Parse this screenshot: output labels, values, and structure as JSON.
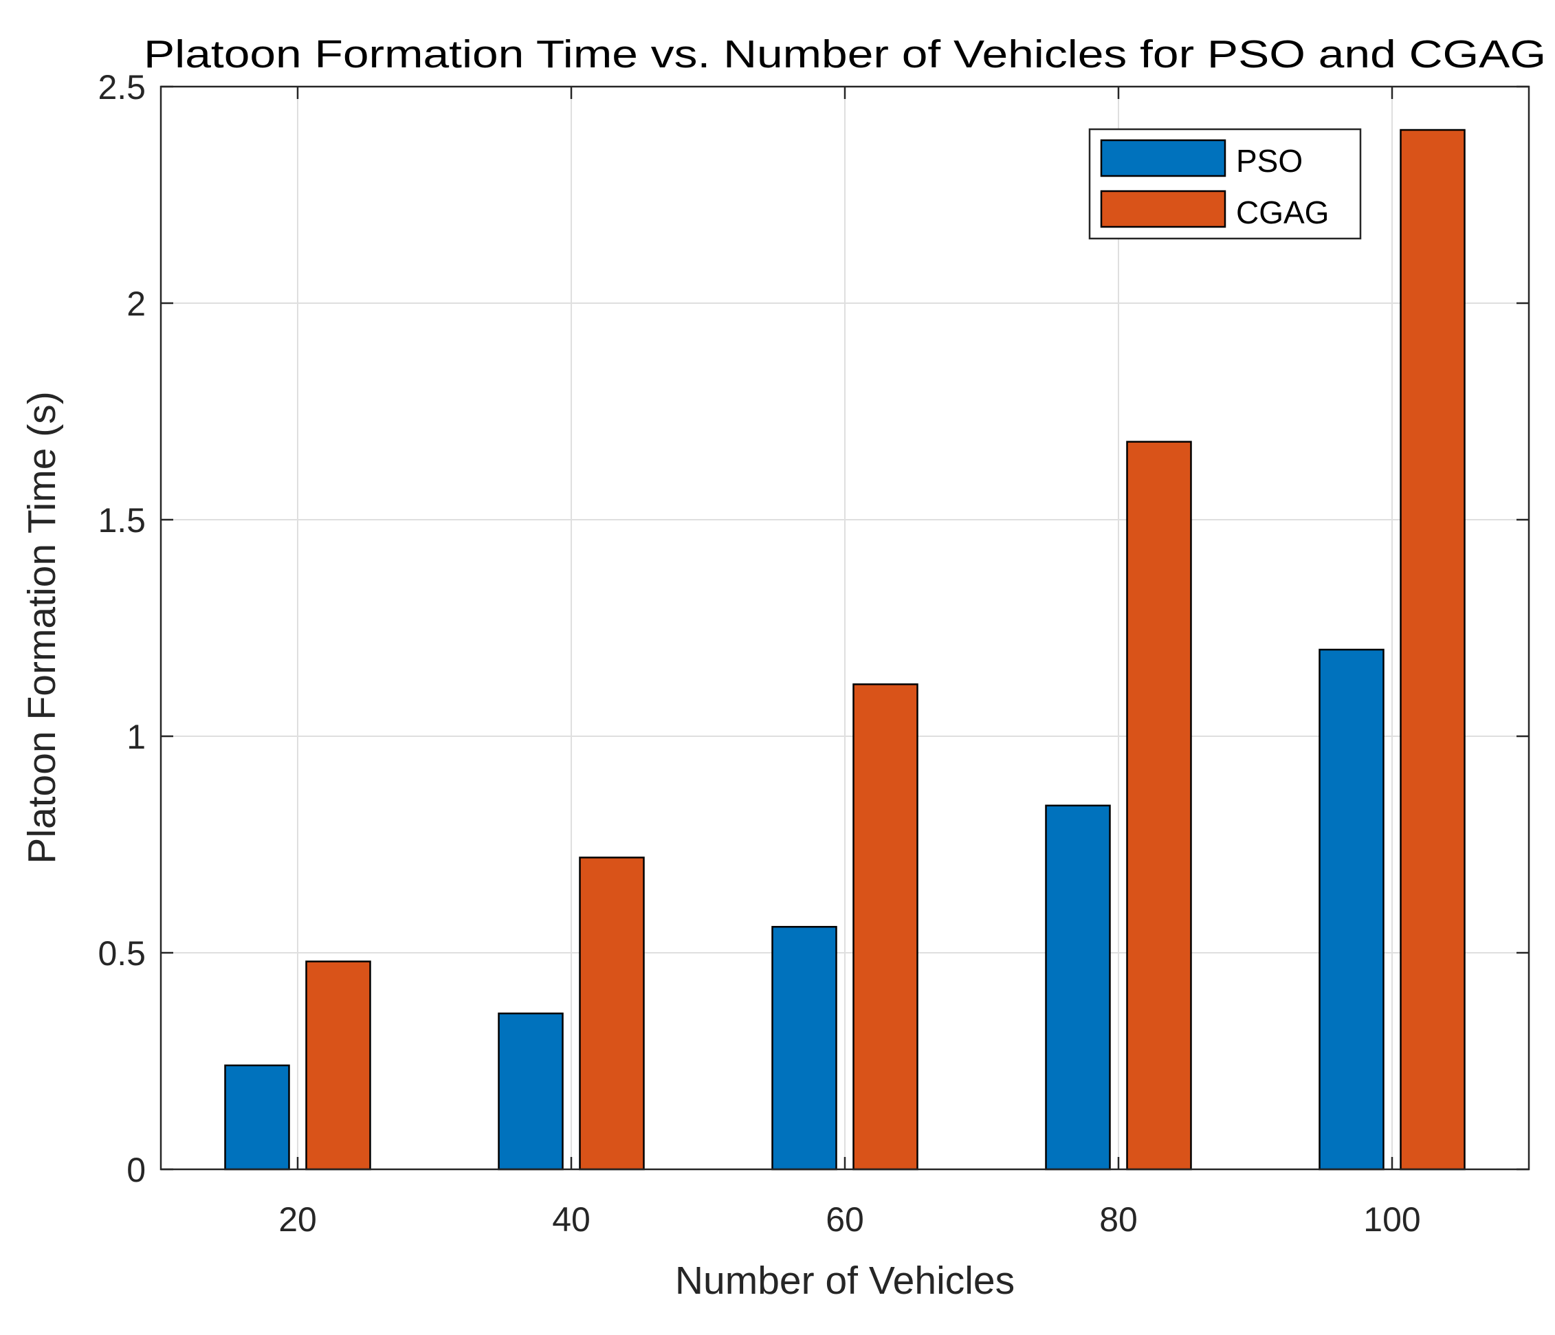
{
  "chart_data": {
    "type": "bar",
    "title": "Platoon Formation Time vs. Number of Vehicles for PSO and CGAG",
    "xlabel": "Number of Vehicles",
    "ylabel": "Platoon Formation Time (s)",
    "categories": [
      "20",
      "40",
      "60",
      "80",
      "100"
    ],
    "ylim": [
      0,
      2.5
    ],
    "yticks": [
      0,
      0.5,
      1,
      1.5,
      2,
      2.5
    ],
    "ytick_labels": [
      "0",
      "0.5",
      "1",
      "1.5",
      "2",
      "2.5"
    ],
    "grid": true,
    "legend_position": "top-right",
    "series": [
      {
        "name": "PSO",
        "color": "#0072BD",
        "values": [
          0.24,
          0.36,
          0.56,
          0.84,
          1.2
        ]
      },
      {
        "name": "CGAG",
        "color": "#D95319",
        "values": [
          0.48,
          0.72,
          1.12,
          1.68,
          2.4
        ]
      }
    ]
  }
}
